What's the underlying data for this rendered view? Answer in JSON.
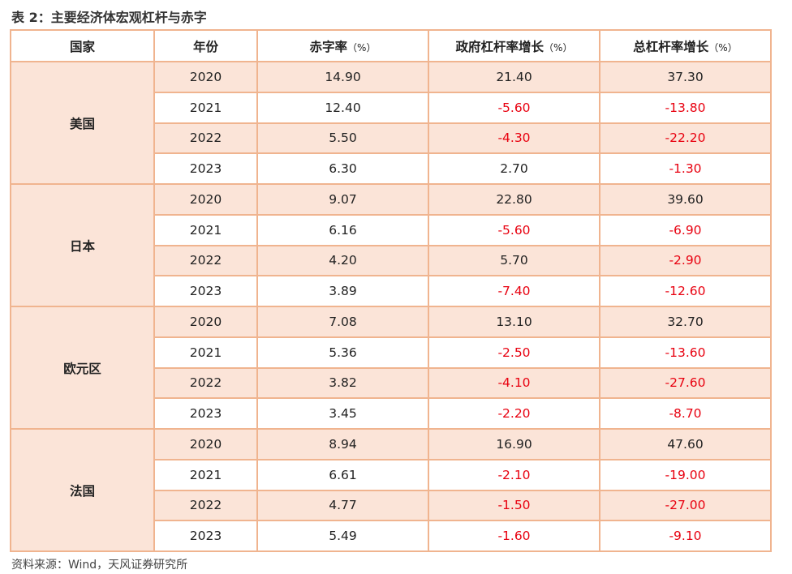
{
  "title": "表 2：主要经济体宏观杠杆与赤字",
  "headers": [
    {
      "label": "国家",
      "unit": ""
    },
    {
      "label": "年份",
      "unit": ""
    },
    {
      "label": "赤字率",
      "unit": "（%）"
    },
    {
      "label": "政府杠杆率增长",
      "unit": "（%）"
    },
    {
      "label": "总杠杆率增长",
      "unit": "（%）"
    }
  ],
  "groups": [
    {
      "country": "美国",
      "rows": [
        {
          "year": "2020",
          "deficit": "14.90",
          "gov": "21.40",
          "total": "37.30"
        },
        {
          "year": "2021",
          "deficit": "12.40",
          "gov": "-5.60",
          "total": "-13.80"
        },
        {
          "year": "2022",
          "deficit": "5.50",
          "gov": "-4.30",
          "total": "-22.20"
        },
        {
          "year": "2023",
          "deficit": "6.30",
          "gov": "2.70",
          "total": "-1.30"
        }
      ]
    },
    {
      "country": "日本",
      "rows": [
        {
          "year": "2020",
          "deficit": "9.07",
          "gov": "22.80",
          "total": "39.60"
        },
        {
          "year": "2021",
          "deficit": "6.16",
          "gov": "-5.60",
          "total": "-6.90"
        },
        {
          "year": "2022",
          "deficit": "4.20",
          "gov": "5.70",
          "total": "-2.90"
        },
        {
          "year": "2023",
          "deficit": "3.89",
          "gov": "-7.40",
          "total": "-12.60"
        }
      ]
    },
    {
      "country": "欧元区",
      "rows": [
        {
          "year": "2020",
          "deficit": "7.08",
          "gov": "13.10",
          "total": "32.70"
        },
        {
          "year": "2021",
          "deficit": "5.36",
          "gov": "-2.50",
          "total": "-13.60"
        },
        {
          "year": "2022",
          "deficit": "3.82",
          "gov": "-4.10",
          "total": "-27.60"
        },
        {
          "year": "2023",
          "deficit": "3.45",
          "gov": "-2.20",
          "total": "-8.70"
        }
      ]
    },
    {
      "country": "法国",
      "rows": [
        {
          "year": "2020",
          "deficit": "8.94",
          "gov": "16.90",
          "total": "47.60"
        },
        {
          "year": "2021",
          "deficit": "6.61",
          "gov": "-2.10",
          "total": "-19.00"
        },
        {
          "year": "2022",
          "deficit": "4.77",
          "gov": "-1.50",
          "total": "-27.00"
        },
        {
          "year": "2023",
          "deficit": "5.49",
          "gov": "-1.60",
          "total": "-9.10"
        }
      ]
    }
  ],
  "source": "资料来源：Wind，天风证券研究所",
  "colors": {
    "border": "#f0b48f",
    "shade": "#fbe4d8",
    "negative": "#e8000f"
  }
}
